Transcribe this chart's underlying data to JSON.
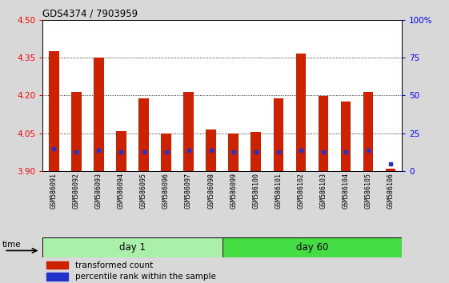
{
  "title": "GDS4374 / 7903959",
  "samples": [
    "GSM586091",
    "GSM586092",
    "GSM586093",
    "GSM586094",
    "GSM586095",
    "GSM586096",
    "GSM586097",
    "GSM586098",
    "GSM586099",
    "GSM586100",
    "GSM586101",
    "GSM586102",
    "GSM586103",
    "GSM586104",
    "GSM586105",
    "GSM586106"
  ],
  "red_values": [
    4.375,
    4.215,
    4.35,
    4.06,
    4.19,
    4.048,
    4.215,
    4.065,
    4.048,
    4.055,
    4.19,
    4.365,
    4.198,
    4.175,
    4.215,
    3.91
  ],
  "blue_values": [
    15,
    13,
    14,
    13,
    13,
    13,
    14,
    14,
    13,
    13,
    13,
    14,
    13,
    13,
    14,
    5
  ],
  "ylim_left": [
    3.9,
    4.5
  ],
  "ylim_right": [
    0,
    100
  ],
  "left_ticks": [
    3.9,
    4.05,
    4.2,
    4.35,
    4.5
  ],
  "right_ticks": [
    0,
    25,
    50,
    75,
    100
  ],
  "bar_color": "#cc2200",
  "blue_color": "#2233cc",
  "background_color": "#d8d8d8",
  "plot_bg": "#ffffff",
  "day1_color": "#aaf0aa",
  "day60_color": "#44dd44",
  "day1_label": "day 1",
  "day60_label": "day 60",
  "day1_samples": 8,
  "day60_samples": 8,
  "legend1": "transformed count",
  "legend2": "percentile rank within the sample",
  "time_label": "time",
  "bar_width": 0.45
}
